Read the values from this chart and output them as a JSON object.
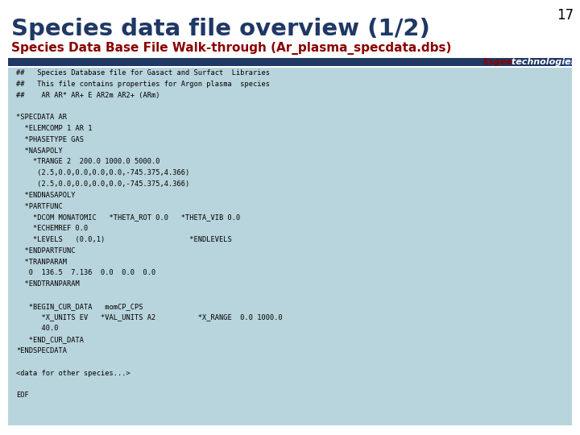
{
  "title_line1": "Species data file overview (1/2)",
  "title_line2": "Species Data Base File Walk-through (Ar_plasma_specdata.dbs)",
  "slide_number": "17",
  "brand_text_esgee": "Esgee",
  "brand_text_tech": " technologies",
  "header_bar_color": "#1f3864",
  "content_bg_color": "#b8d4dc",
  "title_color": "#1f3864",
  "subtitle_color": "#8B0000",
  "brand_esgee_color": "#8B0000",
  "brand_tech_color": "#ffffff",
  "slide_number_color": "#000000",
  "code_color": "#000000",
  "bg_color": "#ffffff",
  "code_lines": [
    "##   Species Database file for Gasact and Surfact  Libraries",
    "##   This file contains properties for Argon plasma  species",
    "##    AR AR* AR+ E AR2m AR2+ (ARm)",
    "",
    "*SPECDATA AR",
    "  *ELEMCOMP 1 AR 1",
    "  *PHASETYPE GAS",
    "  *NASAPOLY",
    "    *TRANGE 2  200.0 1000.0 5000.0",
    "     (2.5,0.0,0.0,0.0,0.0,-745.375,4.366)",
    "     (2.5,0.0,0.0,0.0,0.0,-745.375,4.366)",
    "  *ENDNASAPOLY",
    "  *PARTFUNC",
    "    *DCOM MONATOMIC   *THETA_ROT 0.0   *THETA_VIB 0.0",
    "    *ECHEMREF 0.0",
    "    *LEVELS   (0.0,1)                    *ENDLEVELS",
    "  *ENDPARTFUNC",
    "  *TRANPARAM",
    "   0  136.5  7.136  0.0  0.0  0.0",
    "  *ENDTRANPARAM",
    "",
    "   *BEGIN_CUR_DATA   momCP_CPS",
    "      *X_UNITS EV   *VAL_UNITS A2          *X_RANGE  0.0 1000.0",
    "      40.0",
    "   *END_CUR_DATA",
    "*ENDSPECDATA",
    "",
    "<data for other species...>",
    "",
    "EOF"
  ]
}
